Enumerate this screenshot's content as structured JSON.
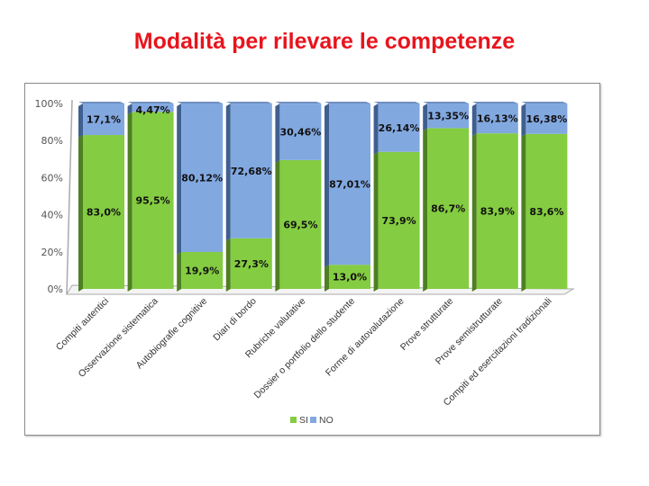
{
  "title": "Modalità per rilevare le competenze",
  "chart_data": {
    "type": "bar",
    "stacked": true,
    "title": "Modalità per rilevare le competenze",
    "categories": [
      "Compiti autentici",
      "Osservazione sistematica",
      "Autobiografie cognitive",
      "Diari di bordo",
      "Rubriche valutative",
      "Dossier o portfolio dello studente",
      "Forme di autovalutazione",
      "Prove strutturate",
      "Prove semistrutturate",
      "Compiti ed esercitazioni tradizionali"
    ],
    "series": [
      {
        "name": "SI",
        "color": "#84cc41",
        "values": [
          83.0,
          95.5,
          19.9,
          27.3,
          69.5,
          13.0,
          73.9,
          86.7,
          83.9,
          83.6
        ],
        "labels": [
          "83,0%",
          "95,5%",
          "19,9%",
          "27,3%",
          "69,5%",
          "13,0%",
          "73,9%",
          "86,7%",
          "83,9%",
          "83,6%"
        ]
      },
      {
        "name": "NO",
        "color": "#82a8e0",
        "values": [
          17.1,
          4.47,
          80.12,
          72.68,
          30.46,
          87.01,
          26.14,
          13.35,
          16.13,
          16.38
        ],
        "labels": [
          "17,1%",
          "4,47%",
          "80,12%",
          "72,68%",
          "30,46%",
          "87,01%",
          "26,14%",
          "13,35%",
          "16,13%",
          "16,38%"
        ]
      }
    ],
    "yticks": [
      "0%",
      "20%",
      "40%",
      "60%",
      "80%",
      "100%"
    ],
    "ylim": [
      0,
      100
    ],
    "legend": "bottom-center"
  }
}
